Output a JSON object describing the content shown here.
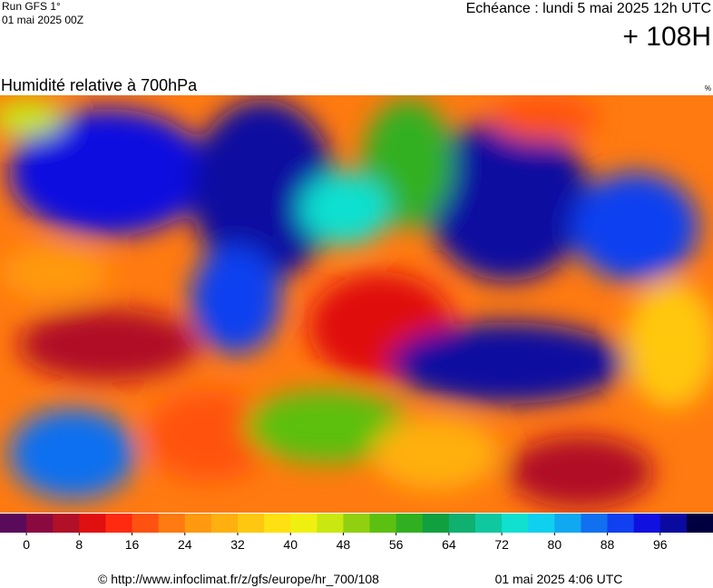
{
  "header": {
    "run": "Run GFS 1°",
    "date": "01 mai 2025 00Z",
    "echeance": "Echéance : lundi 5 mai 2025 12h UTC",
    "lead": "+ 108H"
  },
  "title": "Humidité relative à 700hPa",
  "unit": "%",
  "colorbar": {
    "colors": [
      "#5a0a5a",
      "#8a0a40",
      "#b01028",
      "#e01010",
      "#ff2a10",
      "#ff5210",
      "#ff7a10",
      "#ff9a10",
      "#ffb010",
      "#ffc810",
      "#ffe010",
      "#f0f010",
      "#c8e810",
      "#90d010",
      "#5cc010",
      "#30b020",
      "#10a040",
      "#10b070",
      "#10c8a0",
      "#10e0d0",
      "#10d0f0",
      "#10a8f0",
      "#1070f0",
      "#1040f0",
      "#1010e0",
      "#0a0aa0",
      "#000040"
    ],
    "lim": [
      -4,
      104
    ],
    "ticks": [
      0,
      8,
      16,
      24,
      32,
      40,
      48,
      56,
      64,
      72,
      80,
      88,
      96
    ]
  },
  "footer": {
    "url": "© http://www.infoclimat.fr/z/gfs/europe/hr_700/108",
    "timestamp": "01 mai 2025  4:06 UTC"
  }
}
